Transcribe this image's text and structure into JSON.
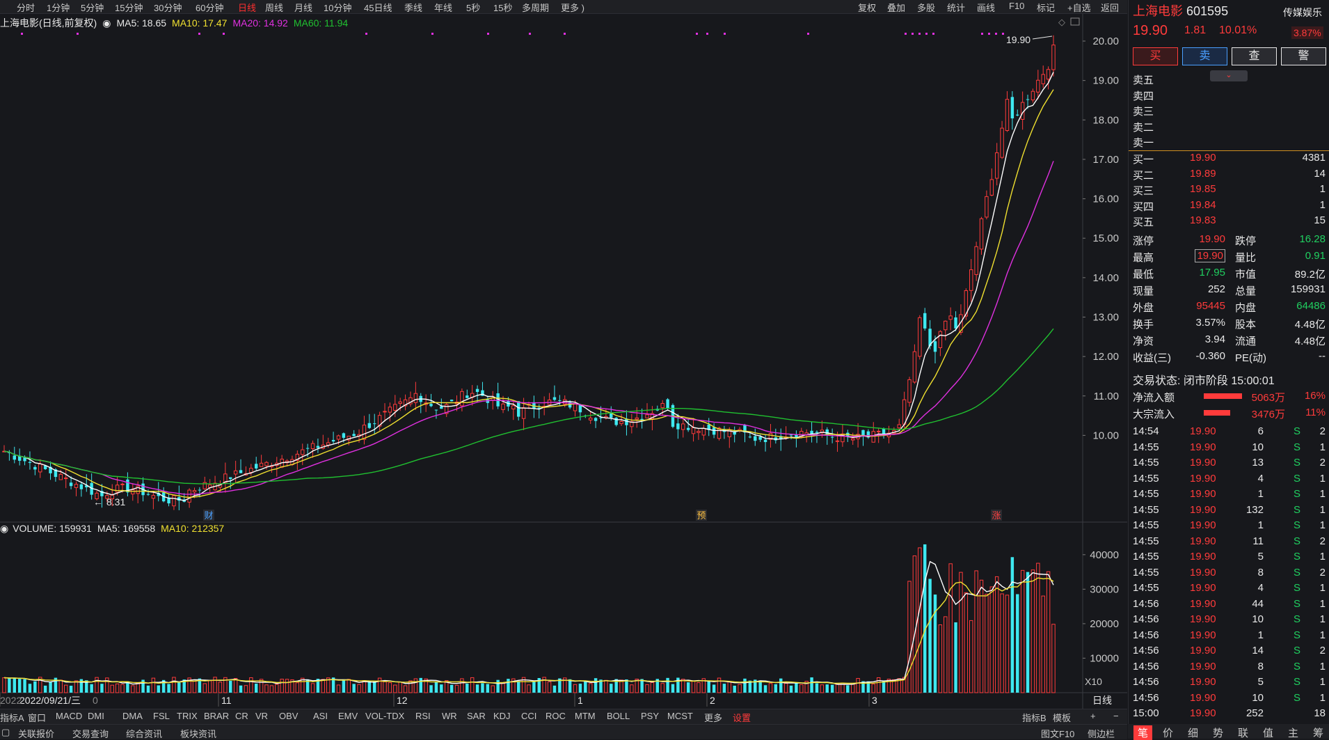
{
  "toolbar": {
    "periods": [
      "分时",
      "1分钟",
      "5分钟",
      "15分钟",
      "30分钟",
      "60分钟",
      "日线",
      "周线",
      "月线",
      "10分钟",
      "45日线",
      "季线",
      "年线",
      "5秒",
      "15秒",
      "多周期",
      "更多 )"
    ],
    "selected": "日线",
    "right": [
      "复权",
      "叠加",
      "多股",
      "统计",
      "画线",
      "F10",
      "标记",
      "+自选",
      "返回"
    ]
  },
  "chart_info": {
    "title": "上海电影(日线,前复权)",
    "ma5": "MA5: 18.65",
    "ma10": "MA10: 17.47",
    "ma20": "MA20: 14.92",
    "ma60": "MA60: 11.94",
    "high_label": "19.90",
    "low_label": "8.31",
    "markers": [
      "财",
      "预",
      "涨"
    ]
  },
  "volume_info": {
    "volume": "VOLUME: 159931",
    "ma5": "MA5: 169558",
    "ma10": "MA10: 212357",
    "x10": "X10"
  },
  "chart_data": {
    "type": "candlestick",
    "price_ticks": [
      "20.00",
      "19.00",
      "18.00",
      "17.00",
      "16.00",
      "15.00",
      "14.00",
      "13.00",
      "12.00",
      "11.00",
      "10.00"
    ],
    "volume_ticks": [
      "40000",
      "30000",
      "20000",
      "10000"
    ],
    "x_labels": [
      "2022/09/21/三",
      "11",
      "12",
      "1",
      "2",
      "3"
    ],
    "x_label_prefix": "2022",
    "x_label_suffix": "0",
    "ylim": [
      7.8,
      20.3
    ],
    "vol_ylim": [
      0,
      44000
    ],
    "colors": {
      "up": "#ff3b3b",
      "down": "#3ee8f0",
      "ma5": "#ffffff",
      "ma10": "#f0e030",
      "ma20": "#e030e0",
      "ma60": "#20c030"
    }
  },
  "bottom_bar": {
    "items": [
      "指标A",
      "窗口",
      "MACD",
      "DMI",
      "DMA",
      "FSL",
      "TRIX",
      "BRAR",
      "CR",
      "VR",
      "OBV",
      "ASI",
      "EMV",
      "VOL-TDX",
      "RSI",
      "WR",
      "SAR",
      "KDJ",
      "CCI",
      "ROC",
      "MTM",
      "BOLL",
      "PSY",
      "MCST",
      "更多",
      "设置"
    ],
    "right": [
      "指标B",
      "模板",
      "+",
      "−"
    ],
    "period": "日线"
  },
  "status_bar": {
    "items": [
      "关联报价",
      "交易查询",
      "综合资讯",
      "板块资讯"
    ],
    "right": [
      "图文F10",
      "侧边栏"
    ]
  },
  "quote": {
    "name": "上海电影",
    "code": "601595",
    "sector": "传媒娱乐",
    "sector_pct": "3.87%",
    "price": "19.90",
    "change": "1.81",
    "pct": "10.01%",
    "buttons": [
      "买",
      "卖",
      "查",
      "警"
    ],
    "sells": [
      "卖五",
      "卖四",
      "卖三",
      "卖二",
      "卖一"
    ],
    "buys": [
      {
        "label": "买一",
        "price": "19.90",
        "vol": "4381"
      },
      {
        "label": "买二",
        "price": "19.89",
        "vol": "14"
      },
      {
        "label": "买三",
        "price": "19.85",
        "vol": "1"
      },
      {
        "label": "买四",
        "price": "19.84",
        "vol": "1"
      },
      {
        "label": "买五",
        "price": "19.83",
        "vol": "15"
      }
    ],
    "stats": [
      {
        "l1": "涨停",
        "v1": "19.90",
        "c1": "red",
        "l2": "跌停",
        "v2": "16.28",
        "c2": "green"
      },
      {
        "l1": "最高",
        "v1": "19.90",
        "c1": "red",
        "l2": "量比",
        "v2": "0.91",
        "c2": "green"
      },
      {
        "l1": "最低",
        "v1": "17.95",
        "c1": "green",
        "l2": "市值",
        "v2": "89.2亿",
        "c2": "white"
      },
      {
        "l1": "现量",
        "v1": "252",
        "c1": "white",
        "l2": "总量",
        "v2": "159931",
        "c2": "white"
      },
      {
        "l1": "外盘",
        "v1": "95445",
        "c1": "red",
        "l2": "内盘",
        "v2": "64486",
        "c2": "green"
      },
      {
        "l1": "换手",
        "v1": "3.57%",
        "c1": "white",
        "l2": "股本",
        "v2": "4.48亿",
        "c2": "white"
      },
      {
        "l1": "净资",
        "v1": "3.94",
        "c1": "white",
        "l2": "流通",
        "v2": "4.48亿",
        "c2": "white"
      },
      {
        "l1": "收益(三)",
        "v1": "-0.360",
        "c1": "white",
        "l2": "PE(动)",
        "v2": "--",
        "c2": "white"
      }
    ],
    "trade_status": "交易状态: 闭市阶段 15:00:01",
    "flows": [
      {
        "label": "净流入额",
        "value": "5063万",
        "pct": "16%"
      },
      {
        "label": "大宗流入",
        "value": "3476万",
        "pct": "11%"
      }
    ],
    "ticks": [
      {
        "t": "14:54",
        "p": "19.90",
        "v": "6",
        "s": "S",
        "n": "2"
      },
      {
        "t": "14:55",
        "p": "19.90",
        "v": "10",
        "s": "S",
        "n": "1"
      },
      {
        "t": "14:55",
        "p": "19.90",
        "v": "13",
        "s": "S",
        "n": "2"
      },
      {
        "t": "14:55",
        "p": "19.90",
        "v": "4",
        "s": "S",
        "n": "1"
      },
      {
        "t": "14:55",
        "p": "19.90",
        "v": "1",
        "s": "S",
        "n": "1"
      },
      {
        "t": "14:55",
        "p": "19.90",
        "v": "132",
        "s": "S",
        "n": "1"
      },
      {
        "t": "14:55",
        "p": "19.90",
        "v": "1",
        "s": "S",
        "n": "1"
      },
      {
        "t": "14:55",
        "p": "19.90",
        "v": "11",
        "s": "S",
        "n": "2"
      },
      {
        "t": "14:55",
        "p": "19.90",
        "v": "5",
        "s": "S",
        "n": "1"
      },
      {
        "t": "14:55",
        "p": "19.90",
        "v": "8",
        "s": "S",
        "n": "2"
      },
      {
        "t": "14:55",
        "p": "19.90",
        "v": "4",
        "s": "S",
        "n": "1"
      },
      {
        "t": "14:56",
        "p": "19.90",
        "v": "44",
        "s": "S",
        "n": "1"
      },
      {
        "t": "14:56",
        "p": "19.90",
        "v": "10",
        "s": "S",
        "n": "1"
      },
      {
        "t": "14:56",
        "p": "19.90",
        "v": "1",
        "s": "S",
        "n": "1"
      },
      {
        "t": "14:56",
        "p": "19.90",
        "v": "14",
        "s": "S",
        "n": "2"
      },
      {
        "t": "14:56",
        "p": "19.90",
        "v": "8",
        "s": "S",
        "n": "1"
      },
      {
        "t": "14:56",
        "p": "19.90",
        "v": "5",
        "s": "S",
        "n": "1"
      },
      {
        "t": "14:56",
        "p": "19.90",
        "v": "10",
        "s": "S",
        "n": "1"
      },
      {
        "t": "15:00",
        "p": "19.90",
        "v": "252",
        "s": "",
        "n": "18"
      }
    ],
    "tabs": [
      "笔",
      "价",
      "细",
      "势",
      "联",
      "值",
      "主",
      "筹"
    ]
  }
}
